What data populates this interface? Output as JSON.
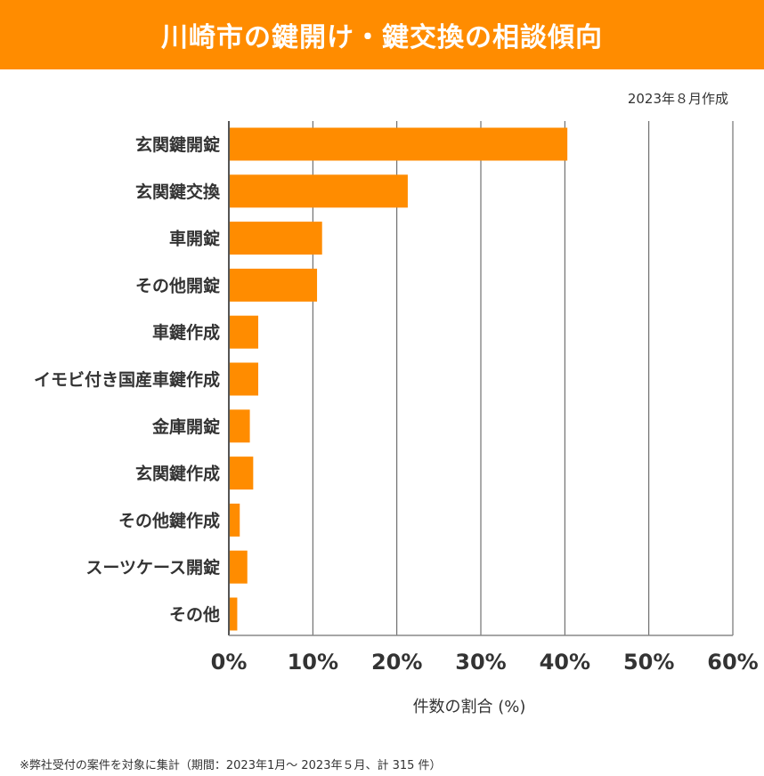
{
  "title": "川崎市の鍵開け・鍵交換の相談傾向",
  "date_note": "2023年８月作成",
  "footnote": "※弊社受付の案件を対象に集計（期間：2023年1月～ 2023年５月、計 315 件）",
  "colors": {
    "bar": "#FF8C00",
    "title_bg": "#FF8C00"
  },
  "chart_data": {
    "type": "bar",
    "orientation": "horizontal",
    "categories": [
      "玄関鍵開錠",
      "玄関鍵交換",
      "車開錠",
      "その他開錠",
      "車鍵作成",
      "イモビ付き国産車鍵作成",
      "金庫開錠",
      "玄関鍵作成",
      "その他鍵作成",
      "スーツケース開錠",
      "その他"
    ],
    "values": [
      40.3,
      21.3,
      11.1,
      10.5,
      3.5,
      3.5,
      2.5,
      2.9,
      1.3,
      2.2,
      1.0
    ],
    "xlabel": "件数の割合 (%)",
    "xlim": [
      0,
      60
    ],
    "xticks": [
      "0%",
      "10%",
      "20%",
      "30%",
      "40%",
      "50%",
      "60%"
    ],
    "grid": "vertical"
  }
}
